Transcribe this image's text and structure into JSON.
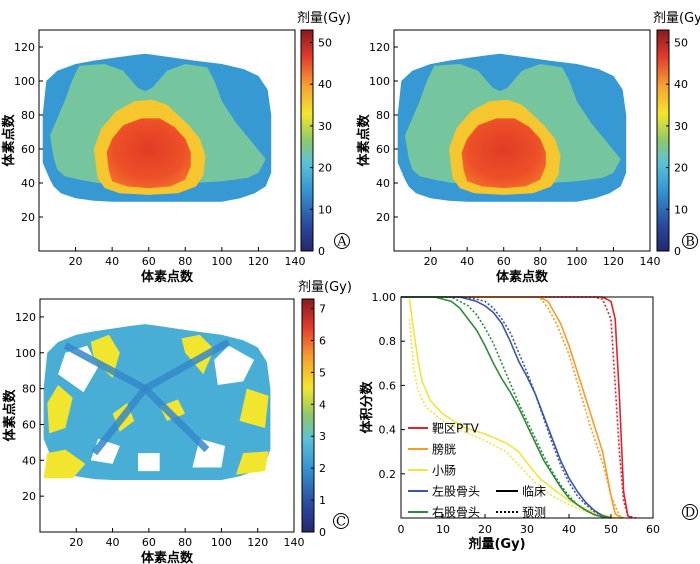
{
  "chart_data": [
    {
      "panel": "A",
      "type": "heatmap",
      "xlabel": "体素点数",
      "ylabel": "体素点数",
      "xticks": [
        20,
        40,
        60,
        80,
        100,
        120,
        140
      ],
      "yticks": [
        20,
        40,
        60,
        80,
        100,
        120
      ],
      "xlim": [
        0,
        140
      ],
      "ylim": [
        0,
        130
      ],
      "colorbar": {
        "title": "剂量(Gy)",
        "range": [
          0,
          53
        ],
        "ticks": [
          0,
          10,
          20,
          30,
          40,
          50
        ],
        "colormap": "jet"
      },
      "regions": [
        {
          "name": "body",
          "dose": 15
        },
        {
          "name": "intermediate",
          "dose": 24
        },
        {
          "name": "high-dose-ring",
          "dose": 36
        },
        {
          "name": "PTV-core",
          "dose": 48
        }
      ]
    },
    {
      "panel": "B",
      "type": "heatmap",
      "xlabel": "体素点数",
      "ylabel": "体素点数",
      "xticks": [
        20,
        40,
        60,
        80,
        100,
        120,
        140
      ],
      "yticks": [
        20,
        40,
        60,
        80,
        100,
        120
      ],
      "xlim": [
        0,
        140
      ],
      "ylim": [
        0,
        130
      ],
      "colorbar": {
        "title": "剂量(Gy)",
        "range": [
          0,
          53
        ],
        "ticks": [
          0,
          10,
          20,
          30,
          40,
          50
        ],
        "colormap": "jet"
      },
      "regions": [
        {
          "name": "body",
          "dose": 15
        },
        {
          "name": "intermediate",
          "dose": 24
        },
        {
          "name": "high-dose-ring",
          "dose": 36
        },
        {
          "name": "PTV-core",
          "dose": 48
        }
      ]
    },
    {
      "panel": "C",
      "type": "heatmap",
      "xlabel": "体素点数",
      "ylabel": "体素点数",
      "xticks": [
        20,
        40,
        60,
        80,
        100,
        120,
        140
      ],
      "yticks": [
        20,
        40,
        60,
        80,
        100,
        120
      ],
      "xlim": [
        0,
        140
      ],
      "ylim": [
        0,
        130
      ],
      "colorbar": {
        "title": "剂量(Gy)",
        "range": [
          0,
          7.3
        ],
        "ticks": [
          0,
          1,
          2,
          3,
          4,
          5,
          6,
          7
        ],
        "colormap": "jet"
      },
      "regions": [
        {
          "name": "white-zero",
          "dose": 0
        },
        {
          "name": "light-blue",
          "dose": 2.5
        },
        {
          "name": "darker-blue",
          "dose": 1.8
        },
        {
          "name": "yellow",
          "dose": 4.5
        }
      ]
    },
    {
      "panel": "D",
      "type": "line",
      "xlabel": "剂量(Gy)",
      "ylabel": "体积分数",
      "xlim": [
        0,
        60
      ],
      "ylim": [
        0,
        1
      ],
      "xticks": [
        0,
        10,
        20,
        30,
        40,
        50,
        60
      ],
      "yticks": [
        0.2,
        0.4,
        0.6,
        0.8,
        1.0
      ],
      "ytick_labels": [
        "0.2",
        "0.4",
        "0.6",
        "0.8",
        "1.00"
      ],
      "legend": {
        "placement": "bottom-left",
        "entries": [
          "靶区PTV",
          "膀胱",
          "小肠",
          "左股骨头",
          "右股骨头"
        ],
        "styles": [
          {
            "label": "临床",
            "dash": "solid"
          },
          {
            "label": "预测",
            "dash": "dotted"
          }
        ]
      },
      "series": [
        {
          "name": "靶区PTV",
          "color": "#e3232c",
          "style": "solid",
          "x": [
            0,
            48,
            50,
            51,
            52,
            53,
            54,
            55
          ],
          "y": [
            1,
            1,
            0.98,
            0.9,
            0.55,
            0.12,
            0.01,
            0
          ]
        },
        {
          "name": "靶区PTV",
          "color": "#e3232c",
          "style": "dotted",
          "x": [
            0,
            46,
            48,
            50,
            51,
            52,
            53,
            54,
            56
          ],
          "y": [
            1,
            1,
            0.99,
            0.9,
            0.6,
            0.3,
            0.08,
            0.01,
            0
          ]
        },
        {
          "name": "膀胱",
          "color": "#f59c25",
          "style": "solid",
          "x": [
            0,
            33,
            35,
            38,
            40,
            45,
            48,
            50,
            51,
            52,
            53
          ],
          "y": [
            1,
            1,
            0.98,
            0.88,
            0.78,
            0.48,
            0.3,
            0.1,
            0.02,
            0.005,
            0
          ]
        },
        {
          "name": "膀胱",
          "color": "#f59c25",
          "style": "dotted",
          "x": [
            0,
            33,
            35,
            37,
            40,
            45,
            48,
            50,
            52,
            53
          ],
          "y": [
            1,
            1,
            0.95,
            0.88,
            0.74,
            0.42,
            0.25,
            0.1,
            0.01,
            0
          ]
        },
        {
          "name": "小肠",
          "color": "#f2e43a",
          "style": "solid",
          "x": [
            2,
            3,
            4,
            5,
            7,
            10,
            15,
            20,
            25,
            28,
            30,
            33,
            37,
            40,
            44,
            47,
            50,
            52
          ],
          "y": [
            0.99,
            0.85,
            0.72,
            0.62,
            0.53,
            0.47,
            0.41,
            0.38,
            0.34,
            0.3,
            0.25,
            0.18,
            0.12,
            0.08,
            0.04,
            0.02,
            0.005,
            0
          ]
        },
        {
          "name": "小肠",
          "color": "#f2e43a",
          "style": "dotted",
          "x": [
            2,
            3,
            4,
            6,
            10,
            15,
            20,
            25,
            29,
            32,
            36,
            40,
            44,
            48,
            51
          ],
          "y": [
            0.9,
            0.68,
            0.58,
            0.5,
            0.44,
            0.39,
            0.35,
            0.3,
            0.22,
            0.16,
            0.1,
            0.06,
            0.03,
            0.01,
            0
          ]
        },
        {
          "name": "左股骨头",
          "color": "#3c56a6",
          "style": "solid",
          "x": [
            0,
            14,
            18,
            20,
            22,
            24,
            26,
            28,
            30,
            32,
            34,
            36,
            38,
            40,
            42,
            44,
            46,
            48,
            50
          ],
          "y": [
            1,
            1,
            0.98,
            0.96,
            0.93,
            0.88,
            0.8,
            0.71,
            0.64,
            0.56,
            0.46,
            0.36,
            0.26,
            0.18,
            0.12,
            0.07,
            0.035,
            0.01,
            0
          ]
        },
        {
          "name": "左股骨头",
          "color": "#3c56a6",
          "style": "dotted",
          "x": [
            0,
            15,
            18,
            20,
            22,
            24,
            26,
            28,
            30,
            32,
            34,
            36,
            38,
            40,
            42,
            44,
            46,
            48,
            50
          ],
          "y": [
            1,
            1,
            0.99,
            0.98,
            0.95,
            0.9,
            0.84,
            0.75,
            0.66,
            0.56,
            0.45,
            0.34,
            0.24,
            0.16,
            0.1,
            0.06,
            0.03,
            0.01,
            0
          ]
        },
        {
          "name": "右股骨头",
          "color": "#2f8a3b",
          "style": "solid",
          "x": [
            0,
            8,
            12,
            14,
            16,
            18,
            20,
            22,
            24,
            26,
            28,
            30,
            32,
            34,
            36,
            38,
            40,
            42,
            44,
            46,
            48,
            50
          ],
          "y": [
            1,
            1,
            0.98,
            0.95,
            0.9,
            0.85,
            0.78,
            0.7,
            0.63,
            0.57,
            0.5,
            0.42,
            0.34,
            0.26,
            0.2,
            0.14,
            0.09,
            0.06,
            0.035,
            0.015,
            0.005,
            0
          ]
        },
        {
          "name": "右股骨头",
          "color": "#2f8a3b",
          "style": "dotted",
          "x": [
            0,
            12,
            14,
            16,
            18,
            20,
            22,
            24,
            26,
            28,
            30,
            32,
            34,
            36,
            38,
            40,
            42,
            44,
            46,
            48,
            50
          ],
          "y": [
            1,
            1,
            0.98,
            0.96,
            0.92,
            0.86,
            0.79,
            0.7,
            0.61,
            0.52,
            0.44,
            0.36,
            0.28,
            0.21,
            0.15,
            0.1,
            0.06,
            0.035,
            0.015,
            0.005,
            0
          ]
        }
      ]
    }
  ],
  "panel_letters": [
    "A",
    "B",
    "C",
    "D"
  ]
}
